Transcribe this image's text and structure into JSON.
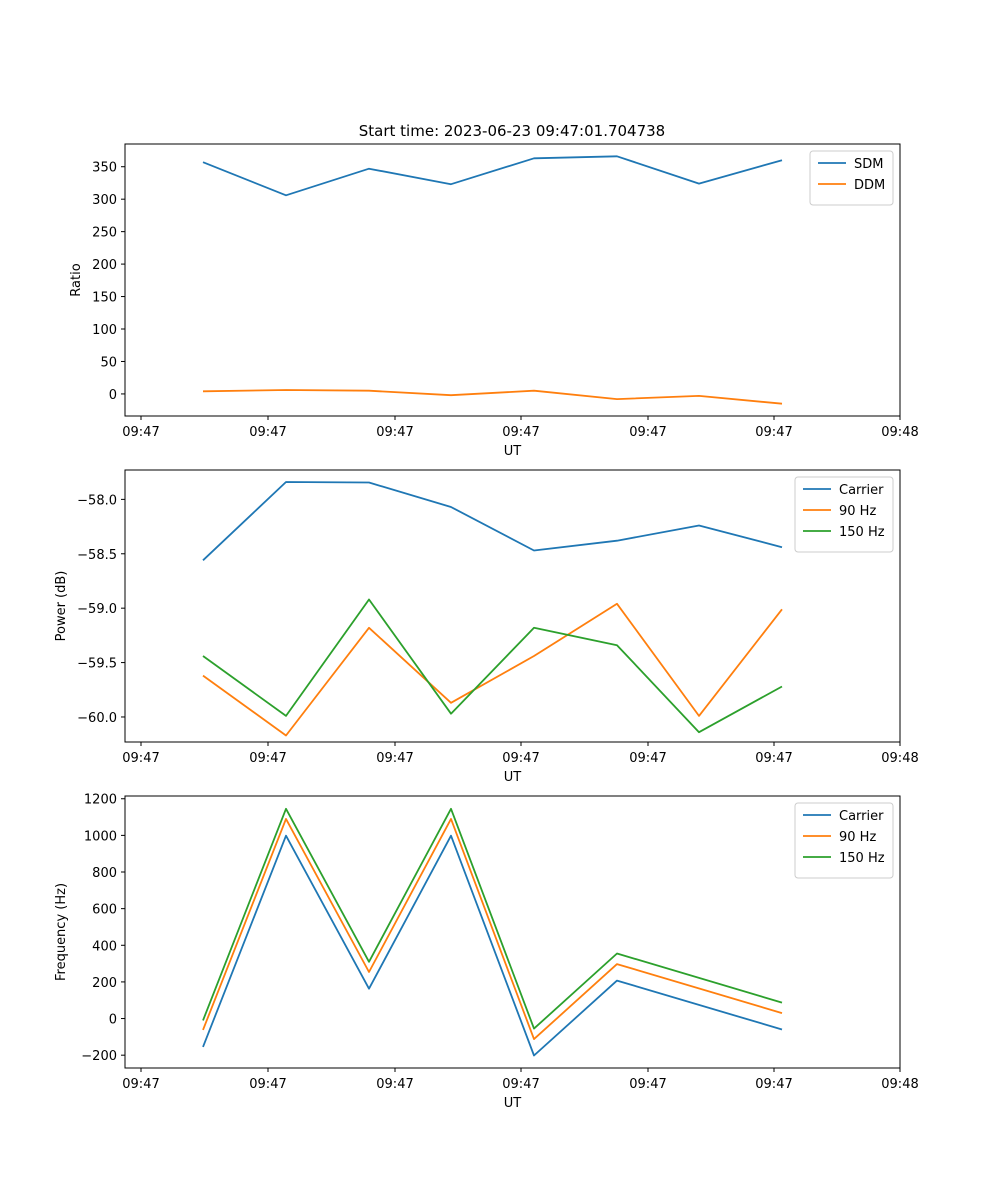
{
  "title": "Start time: 2023-06-23 09:47:01.704738",
  "chart_data": [
    {
      "type": "line",
      "xlabel": "UT",
      "ylabel": "Ratio",
      "x_tick_labels": [
        "09:47",
        "09:47",
        "09:47",
        "09:47",
        "09:47",
        "09:47",
        "09:48"
      ],
      "ylim": [
        -34,
        385
      ],
      "y_ticks": [
        0,
        50,
        100,
        150,
        200,
        250,
        300,
        350
      ],
      "grid": false,
      "legend": "top-right",
      "series": [
        {
          "name": "SDM",
          "color": "#1f77b4",
          "values": [
            357,
            306,
            347,
            323,
            363,
            366,
            324,
            360
          ]
        },
        {
          "name": "DDM",
          "color": "#ff7f0e",
          "values": [
            4,
            6,
            5,
            -2,
            5,
            -8,
            -3,
            -15
          ]
        }
      ]
    },
    {
      "type": "line",
      "xlabel": "UT",
      "ylabel": "Power (dB)",
      "x_tick_labels": [
        "09:47",
        "09:47",
        "09:47",
        "09:47",
        "09:47",
        "09:47",
        "09:48"
      ],
      "ylim": [
        -60.23,
        -57.73
      ],
      "y_ticks": [
        -58.0,
        -58.5,
        -59.0,
        -59.5,
        -60.0
      ],
      "y_tick_labels": [
        "−58.0",
        "−58.5",
        "−59.0",
        "−59.5",
        "−60.0"
      ],
      "grid": false,
      "legend": "top-right",
      "series": [
        {
          "name": "Carrier",
          "color": "#1f77b4",
          "values": [
            -58.56,
            -57.84,
            -57.845,
            -58.07,
            -58.47,
            -58.38,
            -58.24,
            -58.44
          ]
        },
        {
          "name": "90 Hz",
          "color": "#ff7f0e",
          "values": [
            -59.62,
            -60.17,
            -59.18,
            -59.87,
            -59.44,
            -58.96,
            -59.99,
            -59.01
          ]
        },
        {
          "name": "150 Hz",
          "color": "#2ca02c",
          "values": [
            -59.44,
            -59.99,
            -58.92,
            -59.97,
            -59.18,
            -59.34,
            -60.14,
            -59.72
          ]
        }
      ]
    },
    {
      "type": "line",
      "xlabel": "UT",
      "ylabel": "Frequency (Hz)",
      "x_tick_labels": [
        "09:47",
        "09:47",
        "09:47",
        "09:47",
        "09:47",
        "09:47",
        "09:48"
      ],
      "ylim": [
        -270,
        1215
      ],
      "y_ticks": [
        -200,
        0,
        200,
        400,
        600,
        800,
        1000,
        1200
      ],
      "y_tick_labels": [
        "−200",
        "0",
        "200",
        "400",
        "600",
        "800",
        "1000",
        "1200"
      ],
      "grid": false,
      "legend": "top-right",
      "series": [
        {
          "name": "Carrier",
          "color": "#1f77b4",
          "values": [
            -155,
            998,
            163,
            998,
            -202,
            207,
            "",
            -60
          ]
        },
        {
          "name": "90 Hz",
          "color": "#ff7f0e",
          "values": [
            -62,
            1090,
            254,
            1090,
            -112,
            297,
            "",
            30
          ]
        },
        {
          "name": "150 Hz",
          "color": "#2ca02c",
          "values": [
            -10,
            1145,
            310,
            1145,
            -55,
            355,
            "",
            87
          ]
        }
      ]
    }
  ]
}
